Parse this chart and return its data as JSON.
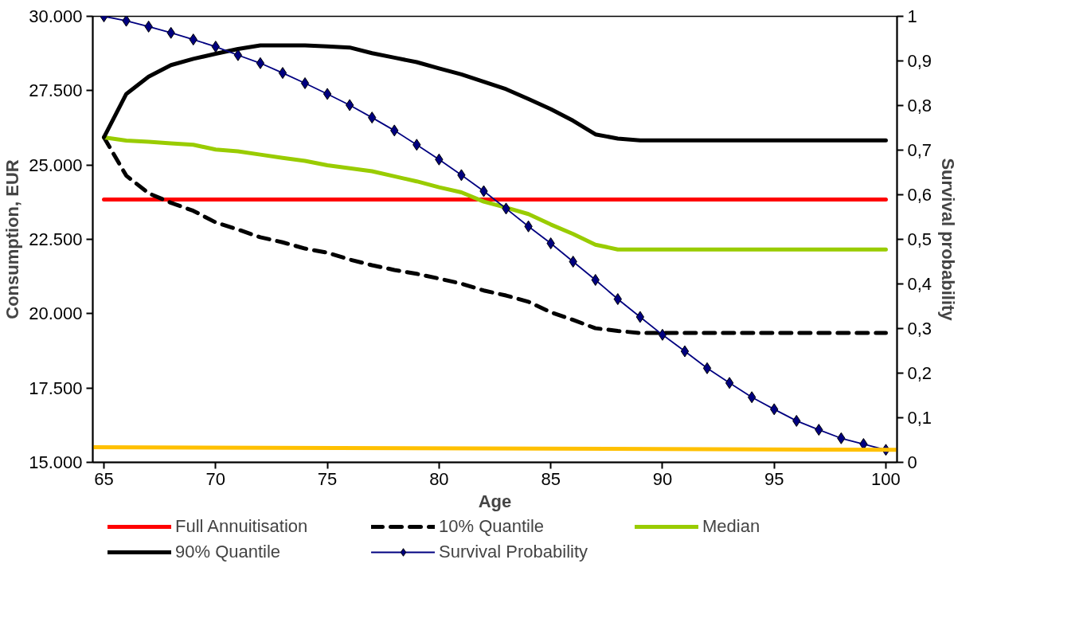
{
  "chart_data": {
    "type": "line",
    "xlabel": "Age",
    "ylabel": "Consumption, EUR",
    "y2label": "Survival probability",
    "x": [
      65,
      66,
      67,
      68,
      69,
      70,
      71,
      72,
      73,
      74,
      75,
      76,
      77,
      78,
      79,
      80,
      81,
      82,
      83,
      84,
      85,
      86,
      87,
      88,
      89,
      90,
      91,
      92,
      93,
      94,
      95,
      96,
      97,
      98,
      99,
      100
    ],
    "xlim": [
      64.5,
      100.5
    ],
    "xticks": [
      65,
      70,
      75,
      80,
      85,
      90,
      95,
      100
    ],
    "ylim": [
      15000,
      30000
    ],
    "yticks": [
      {
        "value": 15000,
        "label": "15.000"
      },
      {
        "value": 17500,
        "label": "17.500"
      },
      {
        "value": 20000,
        "label": "20.000"
      },
      {
        "value": 22500,
        "label": "22.500"
      },
      {
        "value": 25000,
        "label": "25.000"
      },
      {
        "value": 27500,
        "label": "27.500"
      },
      {
        "value": 30000,
        "label": "30.000"
      }
    ],
    "y2lim": [
      0,
      1
    ],
    "y2ticks": [
      0,
      {
        "value": 0.1,
        "label": "0,1"
      },
      {
        "value": 0.2,
        "label": "0,2"
      },
      {
        "value": 0.3,
        "label": "0,3"
      },
      {
        "value": 0.4,
        "label": "0,4"
      },
      {
        "value": 0.5,
        "label": "0,5"
      },
      {
        "value": 0.6,
        "label": "0,6"
      },
      {
        "value": 0.7,
        "label": "0,7"
      },
      {
        "value": 0.8,
        "label": "0,8"
      },
      {
        "value": 0.9,
        "label": "0,9"
      },
      1
    ],
    "grid": false,
    "legend": "bottom",
    "series": [
      {
        "name": "Full Annuitisation",
        "color": "#ff0000",
        "line_style": "solid",
        "values": [
          23840,
          23840,
          23840,
          23840,
          23840,
          23840,
          23840,
          23840,
          23840,
          23840,
          23840,
          23840,
          23840,
          23840,
          23840,
          23840,
          23840,
          23840,
          23840,
          23840,
          23840,
          23840,
          23840,
          23840,
          23840,
          23840,
          23840,
          23840,
          23840,
          23840,
          23840,
          23840,
          23840,
          23840,
          23840,
          23840
        ]
      },
      {
        "name": "10% Quantile",
        "color": "#000000",
        "line_style": "dashed",
        "values": [
          25930,
          24640,
          24050,
          23730,
          23460,
          23070,
          22830,
          22570,
          22400,
          22190,
          22050,
          21820,
          21630,
          21470,
          21340,
          21180,
          21010,
          20780,
          20610,
          20400,
          20050,
          19790,
          19510,
          19420,
          19350,
          19350,
          19350,
          19350,
          19350,
          19350,
          19350,
          19350,
          19350,
          19350,
          19350,
          19350
        ]
      },
      {
        "name": "Median",
        "color": "#99cc00",
        "line_style": "solid",
        "values": [
          25930,
          25820,
          25780,
          25730,
          25680,
          25520,
          25460,
          25350,
          25240,
          25140,
          24990,
          24890,
          24790,
          24620,
          24450,
          24250,
          24080,
          23770,
          23570,
          23350,
          23000,
          22680,
          22320,
          22160,
          22160,
          22160,
          22160,
          22160,
          22160,
          22160,
          22160,
          22160,
          22160,
          22160,
          22160,
          22160
        ]
      },
      {
        "name": "90% Quantile",
        "color": "#000000",
        "line_style": "solid",
        "values": [
          25930,
          27390,
          27970,
          28360,
          28570,
          28740,
          28900,
          29020,
          29020,
          29020,
          28990,
          28950,
          28760,
          28610,
          28460,
          28250,
          28050,
          27800,
          27550,
          27220,
          26880,
          26490,
          26030,
          25890,
          25830,
          25830,
          25830,
          25830,
          25830,
          25830,
          25830,
          25830,
          25830,
          25830,
          25830,
          25830
        ]
      },
      {
        "name": "Survival Probability",
        "color": "#000080",
        "line_style": "solid",
        "marker": "diamond",
        "axis": "y2",
        "values": [
          1.0,
          0.99,
          0.977,
          0.963,
          0.948,
          0.932,
          0.913,
          0.895,
          0.873,
          0.85,
          0.826,
          0.801,
          0.773,
          0.744,
          0.712,
          0.679,
          0.644,
          0.608,
          0.569,
          0.529,
          0.491,
          0.45,
          0.409,
          0.366,
          0.326,
          0.286,
          0.249,
          0.211,
          0.178,
          0.146,
          0.119,
          0.093,
          0.073,
          0.054,
          0.041,
          0.028
        ]
      },
      {
        "color": "#ffc000",
        "line_style": "solid",
        "x": [
          64.5,
          100.5
        ],
        "values": [
          15510,
          15420
        ]
      }
    ]
  }
}
